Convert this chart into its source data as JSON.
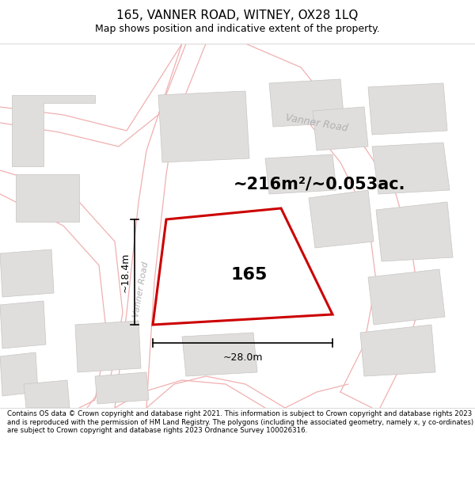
{
  "title": "165, VANNER ROAD, WITNEY, OX28 1LQ",
  "subtitle": "Map shows position and indicative extent of the property.",
  "footer": "Contains OS data © Crown copyright and database right 2021. This information is subject to Crown copyright and database rights 2023 and is reproduced with the permission of HM Land Registry. The polygons (including the associated geometry, namely x, y co-ordinates) are subject to Crown copyright and database rights 2023 Ordnance Survey 100026316.",
  "area_label": "~216m²/~0.053ac.",
  "property_label": "165",
  "dim_h": "~28.0m",
  "dim_v": "~18.4m",
  "road_label_top": "Vanner Road",
  "road_label_left": "Vanner Road",
  "map_bg": "#f7f5f3",
  "property_fill": "#ffffff",
  "property_edge": "#cc0000",
  "building_fill": "#e0dedd",
  "building_edge": "#c8c5c2",
  "road_line_color": "#f0b0b0",
  "figsize": [
    6.0,
    6.25
  ],
  "dpi": 100,
  "title_fontsize": 11,
  "subtitle_fontsize": 9,
  "footer_fontsize": 6.2,
  "area_fontsize": 15,
  "label_fontsize": 16,
  "dim_fontsize": 9
}
